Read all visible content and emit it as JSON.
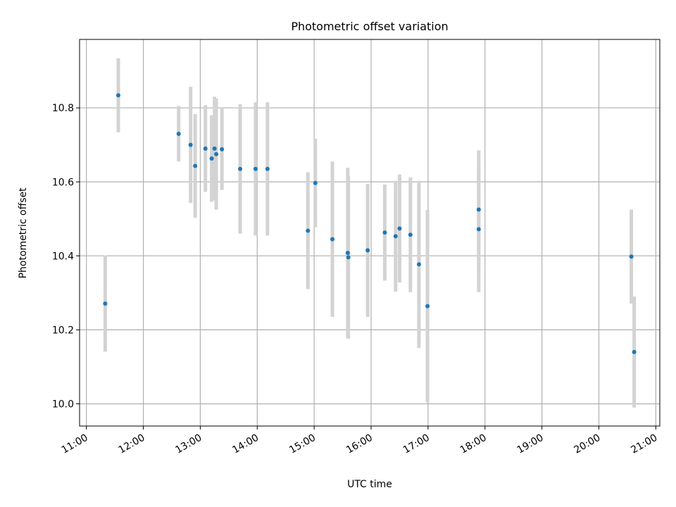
{
  "chart_data": {
    "type": "scatter",
    "title": "Photometric offset variation",
    "xlabel": "UTC time",
    "ylabel": "Photometric offset",
    "xlim_hours": [
      10.88,
      21.07
    ],
    "ylim": [
      9.94,
      10.985
    ],
    "grid": true,
    "x_ticks": [
      {
        "value": 11,
        "label": "11:00"
      },
      {
        "value": 12,
        "label": "12:00"
      },
      {
        "value": 13,
        "label": "13:00"
      },
      {
        "value": 14,
        "label": "14:00"
      },
      {
        "value": 15,
        "label": "15:00"
      },
      {
        "value": 16,
        "label": "16:00"
      },
      {
        "value": 17,
        "label": "17:00"
      },
      {
        "value": 18,
        "label": "18:00"
      },
      {
        "value": 19,
        "label": "19:00"
      },
      {
        "value": 20,
        "label": "20:00"
      },
      {
        "value": 21,
        "label": "21:00"
      }
    ],
    "y_ticks": [
      {
        "value": 10.0,
        "label": "10.0"
      },
      {
        "value": 10.2,
        "label": "10.2"
      },
      {
        "value": 10.4,
        "label": "10.4"
      },
      {
        "value": 10.6,
        "label": "10.6"
      },
      {
        "value": 10.8,
        "label": "10.8"
      }
    ],
    "point_color": "#1f77b4",
    "errorbar_color": "#d3d3d3",
    "points": [
      {
        "x": 11.33,
        "y": 10.271,
        "err": 0.13
      },
      {
        "x": 11.56,
        "y": 10.834,
        "err": 0.1
      },
      {
        "x": 12.62,
        "y": 10.73,
        "err": 0.075
      },
      {
        "x": 12.83,
        "y": 10.7,
        "err": 0.157
      },
      {
        "x": 12.91,
        "y": 10.643,
        "err": 0.14
      },
      {
        "x": 13.09,
        "y": 10.69,
        "err": 0.117
      },
      {
        "x": 13.2,
        "y": 10.663,
        "err": 0.117
      },
      {
        "x": 13.25,
        "y": 10.69,
        "err": 0.14
      },
      {
        "x": 13.28,
        "y": 10.675,
        "err": 0.15
      },
      {
        "x": 13.38,
        "y": 10.688,
        "err": 0.11
      },
      {
        "x": 13.7,
        "y": 10.635,
        "err": 0.175
      },
      {
        "x": 13.97,
        "y": 10.635,
        "err": 0.18
      },
      {
        "x": 14.18,
        "y": 10.635,
        "err": 0.18
      },
      {
        "x": 14.89,
        "y": 10.468,
        "err": 0.158
      },
      {
        "x": 15.02,
        "y": 10.597,
        "err": 0.12
      },
      {
        "x": 15.32,
        "y": 10.445,
        "err": 0.21
      },
      {
        "x": 15.59,
        "y": 10.408,
        "err": 0.23
      },
      {
        "x": 15.6,
        "y": 10.396,
        "err": 0.22
      },
      {
        "x": 15.94,
        "y": 10.415,
        "err": 0.18
      },
      {
        "x": 16.24,
        "y": 10.463,
        "err": 0.13
      },
      {
        "x": 16.43,
        "y": 10.453,
        "err": 0.15
      },
      {
        "x": 16.5,
        "y": 10.474,
        "err": 0.146
      },
      {
        "x": 16.69,
        "y": 10.457,
        "err": 0.155
      },
      {
        "x": 16.84,
        "y": 10.377,
        "err": 0.226
      },
      {
        "x": 16.99,
        "y": 10.264,
        "err": 0.26
      },
      {
        "x": 17.89,
        "y": 10.525,
        "err": 0.16
      },
      {
        "x": 17.89,
        "y": 10.472,
        "err": 0.17
      },
      {
        "x": 20.57,
        "y": 10.398,
        "err": 0.127
      },
      {
        "x": 20.62,
        "y": 10.14,
        "err": 0.15
      }
    ]
  }
}
